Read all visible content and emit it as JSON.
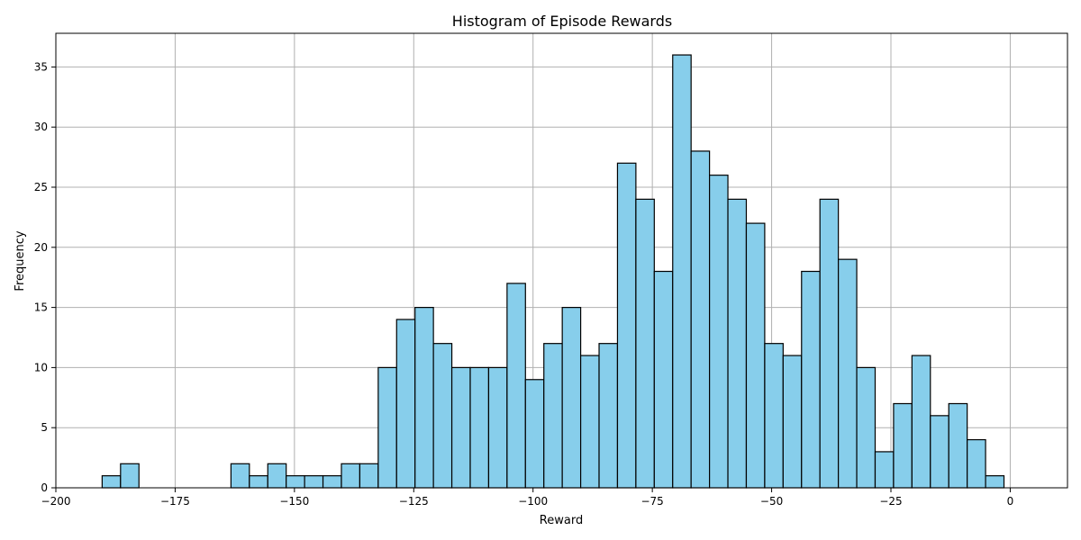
{
  "chart_data": {
    "type": "bar",
    "title": "Histogram of Episode Rewards",
    "xlabel": "Reward",
    "ylabel": "Frequency",
    "xlim": [
      -200,
      12
    ],
    "ylim": [
      0,
      37.8
    ],
    "grid": true,
    "bar_color": "#87CEEB",
    "edge_color": "#000000",
    "bin_start": -190.3,
    "bin_width": 3.857,
    "counts": [
      1,
      2,
      0,
      0,
      0,
      0,
      0,
      2,
      1,
      2,
      1,
      1,
      1,
      2,
      2,
      10,
      14,
      15,
      12,
      10,
      10,
      10,
      17,
      9,
      12,
      15,
      11,
      12,
      27,
      24,
      18,
      36,
      28,
      26,
      24,
      22,
      12,
      11,
      18,
      24,
      19,
      10,
      3,
      7,
      11,
      6,
      7,
      4,
      1
    ],
    "x_ticks": [
      -200,
      -175,
      -150,
      -125,
      -100,
      -75,
      -50,
      -25,
      0
    ],
    "x_tick_labels": [
      "−200",
      "−175",
      "−150",
      "−125",
      "−100",
      "−75",
      "−50",
      "−25",
      "0"
    ],
    "y_ticks": [
      0,
      5,
      10,
      15,
      20,
      25,
      30,
      35
    ],
    "y_tick_labels": [
      "0",
      "5",
      "10",
      "15",
      "20",
      "25",
      "30",
      "35"
    ]
  }
}
